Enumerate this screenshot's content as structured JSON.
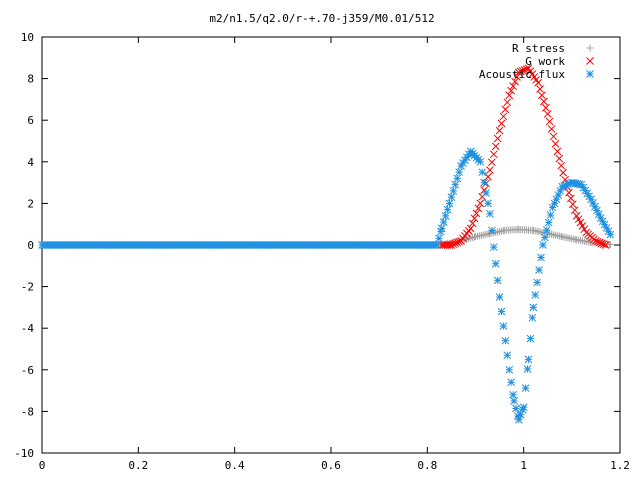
{
  "chart_data": {
    "type": "scatter",
    "title": "m2/n1.5/q2.0/r-+.70-j359/M0.01/512",
    "xlabel": "",
    "ylabel": "",
    "xlim": [
      0,
      1.2
    ],
    "ylim": [
      -10,
      10
    ],
    "x_ticks": [
      "0",
      "0.2",
      "0.4",
      "0.6",
      "0.8",
      "1",
      "1.2"
    ],
    "y_ticks": [
      "10",
      "8",
      "6",
      "4",
      "2",
      "0",
      "-2",
      "-4",
      "-6",
      "-8",
      "-10"
    ],
    "grid": false,
    "legend_position": "top-right",
    "series": [
      {
        "name": "R stress",
        "marker": "plus",
        "color": "#a0a0a0",
        "x": [
          0.0,
          0.1,
          0.2,
          0.3,
          0.4,
          0.5,
          0.6,
          0.7,
          0.8,
          0.83,
          0.85,
          0.87,
          0.9,
          0.93,
          0.96,
          0.99,
          1.02,
          1.05,
          1.08,
          1.11,
          1.14,
          1.17,
          1.18
        ],
        "y": [
          0,
          0,
          0,
          0,
          0,
          0,
          0,
          0,
          0,
          0.02,
          0.1,
          0.2,
          0.4,
          0.55,
          0.7,
          0.75,
          0.7,
          0.55,
          0.4,
          0.25,
          0.12,
          0.05,
          0.02
        ]
      },
      {
        "name": "G work",
        "marker": "cross",
        "color": "#ff0000",
        "x": [
          0.83,
          0.85,
          0.87,
          0.89,
          0.91,
          0.93,
          0.95,
          0.97,
          0.99,
          1.01,
          1.03,
          1.05,
          1.07,
          1.09,
          1.11,
          1.13,
          1.15,
          1.17
        ],
        "y": [
          0,
          0,
          0.2,
          0.8,
          2.0,
          3.6,
          5.5,
          7.2,
          8.3,
          8.5,
          7.8,
          6.3,
          4.5,
          2.8,
          1.4,
          0.6,
          0.2,
          0.0
        ]
      },
      {
        "name": "Acoustic flux",
        "marker": "asterisk",
        "color": "#1e90e0",
        "x": [
          0.0,
          0.2,
          0.4,
          0.6,
          0.8,
          0.82,
          0.83,
          0.85,
          0.87,
          0.89,
          0.91,
          0.93,
          0.95,
          0.97,
          0.98,
          0.99,
          1.0,
          1.01,
          1.02,
          1.04,
          1.06,
          1.08,
          1.1,
          1.12,
          1.14,
          1.16,
          1.18
        ],
        "y": [
          0,
          0,
          0,
          0,
          0,
          0,
          0.8,
          2.3,
          3.8,
          4.5,
          4.0,
          1.5,
          -2.5,
          -6.0,
          -7.5,
          -8.4,
          -7.8,
          -5.5,
          -3.0,
          0.0,
          1.8,
          2.8,
          3.0,
          2.9,
          2.2,
          1.3,
          0.5
        ]
      }
    ]
  }
}
